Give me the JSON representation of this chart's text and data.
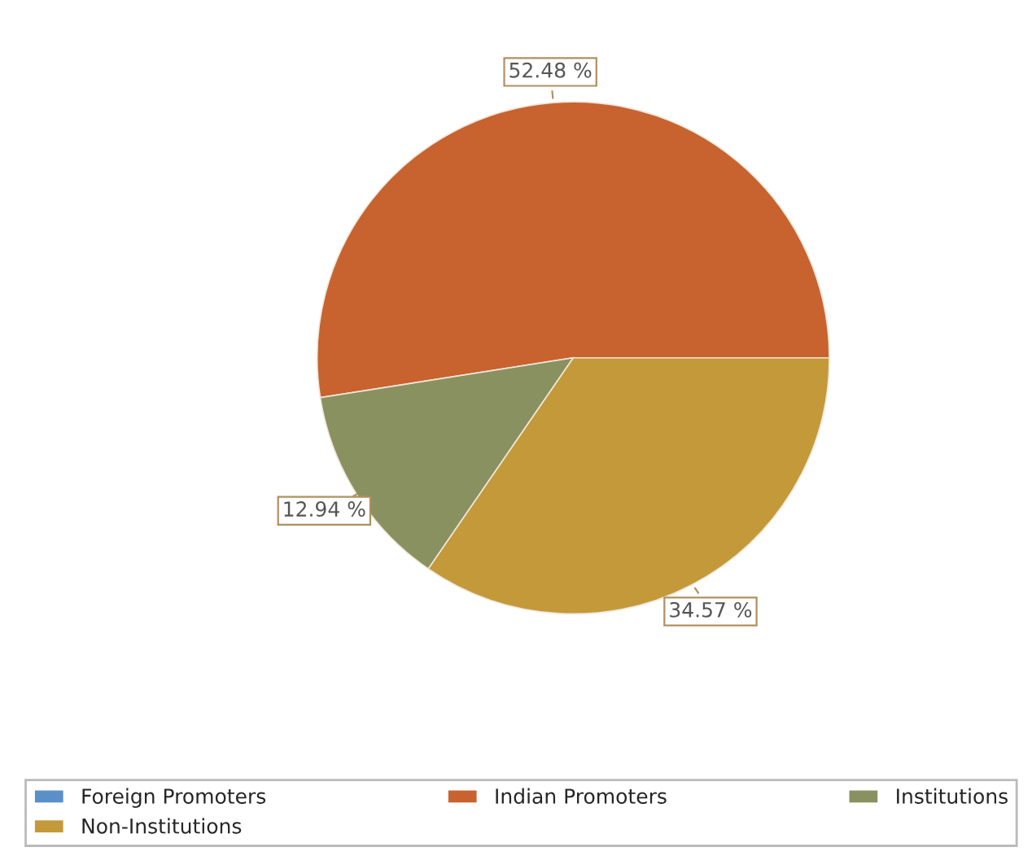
{
  "chart_data": {
    "type": "pie",
    "categories": [
      "Foreign Promoters",
      "Indian Promoters",
      "Institutions",
      "Non-Institutions"
    ],
    "values": [
      0,
      52.48,
      12.94,
      34.57
    ],
    "value_labels": [
      null,
      "52.48 %",
      "12.94 %",
      "34.57 %"
    ],
    "colors": [
      "#5b8fc7",
      "#c8622f",
      "#8a9160",
      "#c4993a"
    ],
    "legend": "bottom"
  }
}
